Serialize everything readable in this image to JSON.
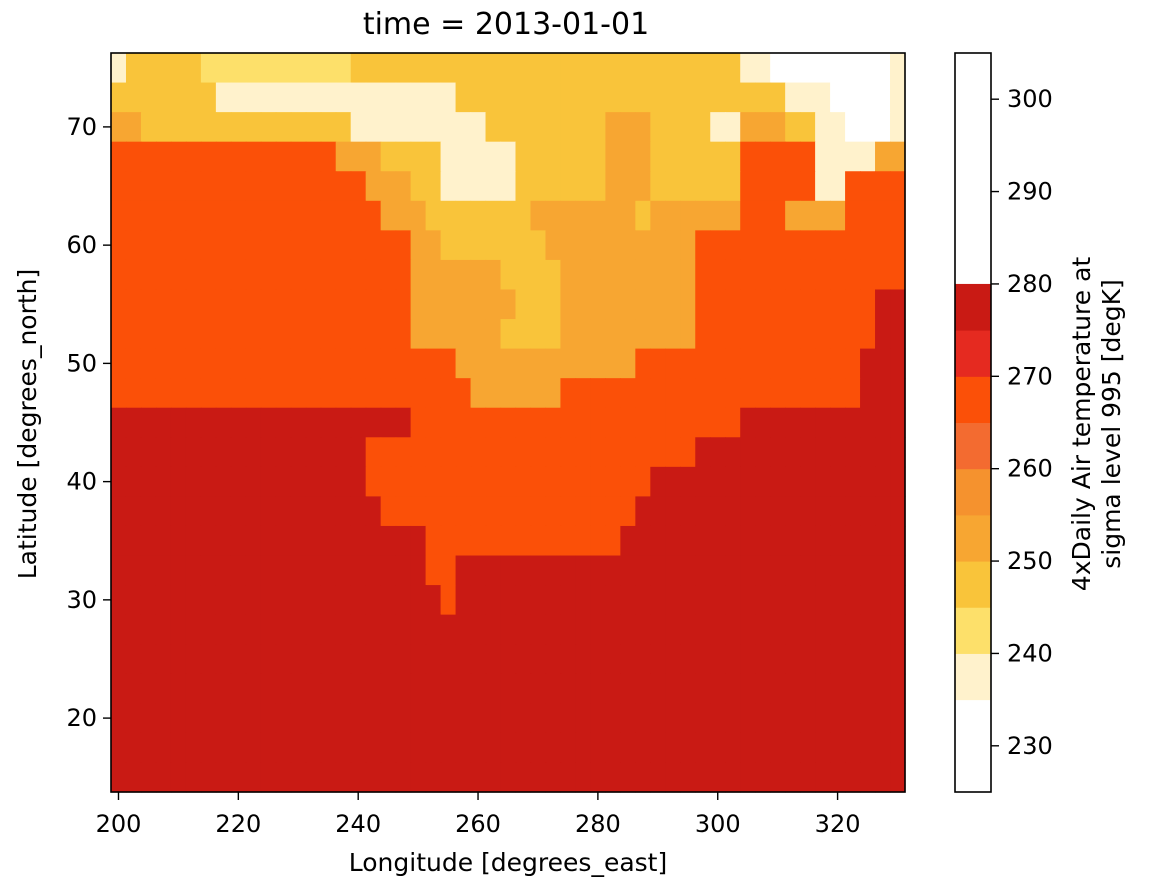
{
  "chart_data": {
    "type": "heatmap",
    "title": "time = 2013-01-01",
    "xlabel": "Longitude [degrees_east]",
    "ylabel": "Latitude [degrees_north]",
    "colorbar_label_lines": [
      "4xDaily Air temperature at",
      "sigma level 995 [degK]"
    ],
    "xlim": [
      200,
      330
    ],
    "ylim": [
      15,
      75
    ],
    "x_ticks": [
      200,
      220,
      240,
      260,
      280,
      300,
      320
    ],
    "y_ticks": [
      20,
      30,
      40,
      50,
      60,
      70
    ],
    "colorbar_ticks": [
      230,
      240,
      250,
      260,
      270,
      280,
      290,
      300
    ],
    "levels": [
      225,
      235,
      240,
      245,
      250,
      255,
      260,
      265,
      270,
      275,
      280,
      285,
      290,
      295,
      305
    ],
    "level_colors": [
      "#ffffff",
      "#fff2cc",
      "#fde06a",
      "#f9c43a",
      "#f7a632",
      "#f5922e",
      "#f36b30",
      "#fb5008",
      "#e52a20",
      "#c91a14"
    ],
    "grid_lon": [
      200,
      202.5,
      205,
      207.5,
      210,
      212.5,
      215,
      217.5,
      220,
      222.5,
      225,
      227.5,
      230,
      232.5,
      235,
      237.5,
      240,
      242.5,
      245,
      247.5,
      250,
      252.5,
      255,
      257.5,
      260,
      262.5,
      265,
      267.5,
      270,
      272.5,
      275,
      277.5,
      280,
      282.5,
      285,
      287.5,
      290,
      292.5,
      295,
      297.5,
      300,
      302.5,
      305,
      307.5,
      310,
      312.5,
      315,
      317.5,
      320,
      322.5,
      325,
      327.5,
      330
    ],
    "grid_lat": [
      75,
      72.5,
      70,
      67.5,
      65,
      62.5,
      60,
      57.5,
      55,
      52.5,
      50,
      47.5,
      45,
      42.5,
      40,
      37.5,
      35,
      32.5,
      30,
      27.5,
      25,
      22.5,
      20,
      17.5,
      15
    ],
    "temperature_degK": [
      [
        238,
        245,
        245,
        245,
        245,
        245,
        240,
        240,
        240,
        240,
        240,
        240,
        240,
        240,
        240,
        240,
        245,
        245,
        245,
        245,
        245,
        245,
        245,
        245,
        245,
        245,
        245,
        245,
        245,
        245,
        245,
        245,
        245,
        245,
        245,
        245,
        245,
        245,
        245,
        245,
        245,
        245,
        238,
        238,
        230,
        230,
        230,
        230,
        230,
        230,
        230,
        230,
        238
      ],
      [
        245,
        245,
        245,
        245,
        245,
        245,
        245,
        238,
        238,
        238,
        238,
        238,
        238,
        238,
        238,
        238,
        238,
        238,
        238,
        238,
        238,
        238,
        238,
        245,
        245,
        245,
        245,
        245,
        245,
        245,
        245,
        245,
        245,
        245,
        245,
        245,
        245,
        245,
        245,
        245,
        245,
        245,
        245,
        245,
        245,
        238,
        238,
        238,
        230,
        230,
        230,
        230,
        238
      ],
      [
        250,
        250,
        245,
        245,
        245,
        245,
        245,
        245,
        245,
        245,
        245,
        245,
        245,
        245,
        245,
        245,
        238,
        238,
        238,
        238,
        238,
        238,
        238,
        238,
        238,
        245,
        245,
        245,
        245,
        245,
        245,
        245,
        245,
        250,
        250,
        250,
        245,
        245,
        245,
        245,
        238,
        238,
        250,
        250,
        250,
        245,
        245,
        238,
        238,
        230,
        230,
        230,
        238
      ],
      [
        265,
        265,
        265,
        265,
        265,
        265,
        265,
        265,
        265,
        265,
        265,
        265,
        265,
        265,
        265,
        250,
        250,
        250,
        245,
        245,
        245,
        245,
        238,
        238,
        238,
        238,
        238,
        245,
        245,
        245,
        245,
        245,
        245,
        250,
        250,
        250,
        245,
        245,
        245,
        245,
        245,
        245,
        265,
        265,
        265,
        265,
        265,
        238,
        238,
        238,
        238,
        250,
        250
      ],
      [
        268,
        268,
        268,
        268,
        268,
        268,
        268,
        268,
        268,
        268,
        268,
        268,
        268,
        268,
        268,
        265,
        265,
        250,
        250,
        250,
        245,
        245,
        238,
        238,
        238,
        238,
        238,
        245,
        245,
        245,
        245,
        245,
        245,
        250,
        250,
        250,
        245,
        245,
        245,
        245,
        245,
        245,
        265,
        265,
        265,
        265,
        265,
        238,
        238,
        268,
        268,
        268,
        268
      ],
      [
        265,
        265,
        265,
        265,
        265,
        265,
        265,
        265,
        265,
        265,
        265,
        265,
        265,
        265,
        265,
        265,
        265,
        265,
        250,
        250,
        250,
        245,
        245,
        245,
        245,
        245,
        245,
        245,
        250,
        250,
        250,
        250,
        250,
        250,
        250,
        245,
        250,
        250,
        250,
        250,
        250,
        250,
        265,
        265,
        265,
        250,
        250,
        250,
        250,
        268,
        268,
        268,
        268
      ],
      [
        268,
        268,
        268,
        268,
        268,
        268,
        268,
        268,
        268,
        268,
        268,
        268,
        268,
        268,
        268,
        268,
        268,
        268,
        268,
        265,
        250,
        250,
        245,
        245,
        245,
        245,
        245,
        245,
        245,
        250,
        250,
        250,
        250,
        250,
        250,
        250,
        250,
        250,
        250,
        265,
        265,
        265,
        265,
        265,
        268,
        268,
        268,
        268,
        268,
        268,
        268,
        268,
        268
      ],
      [
        268,
        268,
        268,
        268,
        268,
        268,
        268,
        268,
        268,
        268,
        268,
        268,
        268,
        268,
        268,
        268,
        268,
        268,
        268,
        268,
        250,
        250,
        250,
        250,
        250,
        250,
        245,
        245,
        245,
        245,
        250,
        250,
        250,
        250,
        250,
        250,
        250,
        250,
        250,
        265,
        265,
        265,
        265,
        265,
        268,
        268,
        268,
        268,
        268,
        268,
        268,
        268,
        268
      ],
      [
        268,
        268,
        268,
        268,
        268,
        268,
        268,
        268,
        268,
        268,
        268,
        268,
        268,
        268,
        268,
        268,
        268,
        268,
        268,
        268,
        250,
        250,
        250,
        250,
        250,
        250,
        250,
        245,
        245,
        245,
        250,
        250,
        250,
        250,
        250,
        250,
        250,
        250,
        250,
        265,
        265,
        265,
        265,
        265,
        265,
        265,
        268,
        268,
        268,
        268,
        268,
        280,
        280
      ],
      [
        268,
        268,
        268,
        268,
        268,
        268,
        268,
        268,
        268,
        268,
        268,
        268,
        268,
        268,
        268,
        268,
        268,
        268,
        268,
        268,
        250,
        250,
        250,
        250,
        250,
        250,
        245,
        245,
        245,
        245,
        250,
        250,
        250,
        250,
        250,
        250,
        250,
        250,
        250,
        265,
        265,
        265,
        265,
        265,
        265,
        265,
        268,
        268,
        268,
        268,
        268,
        280,
        280
      ],
      [
        268,
        268,
        268,
        268,
        268,
        268,
        268,
        268,
        268,
        268,
        268,
        268,
        268,
        268,
        268,
        268,
        268,
        268,
        268,
        268,
        265,
        265,
        265,
        250,
        250,
        250,
        250,
        250,
        250,
        250,
        250,
        250,
        250,
        250,
        250,
        265,
        265,
        265,
        265,
        265,
        265,
        265,
        268,
        268,
        268,
        268,
        268,
        268,
        268,
        268,
        280,
        280,
        280
      ],
      [
        268,
        268,
        268,
        268,
        268,
        268,
        268,
        268,
        268,
        268,
        268,
        268,
        268,
        268,
        268,
        268,
        268,
        268,
        268,
        268,
        265,
        265,
        265,
        265,
        250,
        250,
        250,
        250,
        250,
        250,
        265,
        265,
        265,
        265,
        265,
        265,
        265,
        265,
        265,
        265,
        265,
        265,
        268,
        268,
        268,
        268,
        268,
        268,
        268,
        268,
        280,
        280,
        292
      ],
      [
        280,
        280,
        280,
        280,
        280,
        280,
        280,
        280,
        280,
        280,
        280,
        280,
        280,
        280,
        280,
        280,
        280,
        280,
        280,
        280,
        265,
        265,
        265,
        265,
        265,
        265,
        265,
        265,
        265,
        265,
        265,
        265,
        265,
        265,
        265,
        265,
        265,
        265,
        265,
        265,
        265,
        265,
        280,
        280,
        280,
        280,
        280,
        280,
        280,
        280,
        292,
        292,
        292
      ],
      [
        280,
        280,
        280,
        280,
        280,
        280,
        280,
        280,
        280,
        280,
        280,
        280,
        280,
        280,
        280,
        280,
        280,
        265,
        265,
        265,
        265,
        265,
        265,
        265,
        265,
        265,
        265,
        265,
        265,
        265,
        268,
        268,
        268,
        268,
        268,
        268,
        268,
        268,
        268,
        280,
        280,
        280,
        280,
        280,
        280,
        280,
        292,
        292,
        292,
        292,
        292,
        292,
        292
      ],
      [
        280,
        280,
        280,
        280,
        280,
        280,
        280,
        280,
        292,
        292,
        280,
        280,
        280,
        280,
        280,
        280,
        280,
        265,
        265,
        265,
        265,
        265,
        265,
        265,
        265,
        265,
        265,
        265,
        268,
        268,
        268,
        268,
        268,
        268,
        268,
        268,
        280,
        280,
        280,
        280,
        280,
        280,
        280,
        280,
        280,
        280,
        292,
        292,
        292,
        292,
        292,
        292,
        292
      ],
      [
        280,
        280,
        280,
        280,
        280,
        280,
        292,
        292,
        292,
        292,
        292,
        292,
        292,
        292,
        280,
        280,
        280,
        280,
        265,
        265,
        265,
        265,
        265,
        265,
        265,
        268,
        268,
        268,
        268,
        268,
        268,
        268,
        268,
        268,
        268,
        280,
        280,
        280,
        280,
        280,
        280,
        280,
        280,
        280,
        280,
        280,
        292,
        292,
        292,
        292,
        292,
        292,
        292
      ],
      [
        292,
        292,
        292,
        292,
        292,
        292,
        292,
        292,
        292,
        292,
        292,
        292,
        292,
        292,
        280,
        280,
        280,
        280,
        280,
        280,
        280,
        268,
        268,
        268,
        268,
        268,
        268,
        268,
        268,
        268,
        268,
        268,
        268,
        268,
        280,
        280,
        292,
        292,
        292,
        292,
        292,
        292,
        280,
        280,
        292,
        292,
        292,
        292,
        292,
        292,
        292,
        292,
        292
      ],
      [
        292,
        292,
        292,
        292,
        292,
        292,
        292,
        292,
        292,
        292,
        292,
        292,
        292,
        292,
        280,
        280,
        280,
        280,
        280,
        280,
        280,
        268,
        268,
        280,
        280,
        280,
        280,
        280,
        280,
        280,
        280,
        280,
        280,
        280,
        292,
        292,
        292,
        292,
        292,
        292,
        292,
        292,
        292,
        292,
        292,
        292,
        292,
        292,
        292,
        292,
        292,
        292,
        292
      ],
      [
        292,
        292,
        292,
        292,
        292,
        292,
        292,
        292,
        292,
        292,
        292,
        292,
        292,
        292,
        292,
        292,
        280,
        280,
        280,
        280,
        280,
        280,
        268,
        280,
        292,
        292,
        292,
        292,
        292,
        292,
        292,
        292,
        292,
        292,
        292,
        292,
        292,
        292,
        292,
        292,
        292,
        292,
        292,
        292,
        292,
        292,
        292,
        298,
        292,
        292,
        292,
        292,
        292
      ],
      [
        292,
        292,
        292,
        292,
        298,
        292,
        292,
        292,
        292,
        292,
        292,
        292,
        292,
        292,
        292,
        292,
        292,
        292,
        292,
        292,
        280,
        280,
        280,
        292,
        292,
        292,
        292,
        292,
        292,
        292,
        292,
        292,
        292,
        292,
        292,
        292,
        292,
        292,
        292,
        292,
        292,
        292,
        298,
        298,
        298,
        298,
        298,
        298,
        298,
        298,
        298,
        292,
        292
      ],
      [
        298,
        298,
        298,
        298,
        298,
        292,
        292,
        292,
        292,
        292,
        292,
        292,
        292,
        292,
        292,
        292,
        292,
        292,
        292,
        292,
        292,
        292,
        292,
        298,
        298,
        298,
        298,
        298,
        298,
        298,
        292,
        292,
        292,
        292,
        292,
        292,
        292,
        292,
        292,
        292,
        292,
        298,
        298,
        298,
        298,
        298,
        298,
        298,
        298,
        298,
        298,
        298,
        292
      ],
      [
        298,
        298,
        298,
        298,
        292,
        292,
        292,
        292,
        292,
        292,
        292,
        292,
        292,
        292,
        292,
        292,
        292,
        292,
        292,
        292,
        292,
        292,
        298,
        280,
        298,
        298,
        298,
        298,
        298,
        298,
        298,
        298,
        298,
        298,
        298,
        298,
        298,
        298,
        298,
        298,
        298,
        298,
        298,
        298,
        298,
        298,
        298,
        298,
        298,
        298,
        298,
        298,
        298
      ],
      [
        298,
        298,
        298,
        298,
        298,
        298,
        292,
        292,
        292,
        292,
        292,
        292,
        292,
        292,
        292,
        292,
        292,
        292,
        292,
        298,
        298,
        298,
        298,
        292,
        292,
        292,
        298,
        298,
        298,
        298,
        298,
        298,
        298,
        298,
        298,
        298,
        298,
        298,
        298,
        298,
        298,
        298,
        298,
        298,
        298,
        298,
        298,
        298,
        298,
        298,
        298,
        298,
        298
      ],
      [
        298,
        298,
        298,
        298,
        298,
        298,
        298,
        298,
        298,
        298,
        298,
        298,
        298,
        298,
        298,
        298,
        298,
        298,
        298,
        298,
        298,
        298,
        298,
        298,
        298,
        298,
        298,
        298,
        298,
        298,
        298,
        298,
        298,
        298,
        298,
        298,
        298,
        298,
        298,
        298,
        298,
        298,
        298,
        298,
        298,
        298,
        298,
        298,
        298,
        298,
        298,
        298,
        298
      ],
      [
        298,
        298,
        298,
        298,
        298,
        298,
        298,
        298,
        298,
        298,
        298,
        298,
        298,
        298,
        298,
        298,
        298,
        298,
        298,
        298,
        298,
        298,
        298,
        298,
        298,
        298,
        298,
        298,
        298,
        298,
        298,
        298,
        298,
        298,
        298,
        298,
        298,
        298,
        298,
        298,
        298,
        298,
        298,
        298,
        298,
        298,
        298,
        298,
        298,
        298,
        298,
        298,
        298
      ]
    ]
  }
}
